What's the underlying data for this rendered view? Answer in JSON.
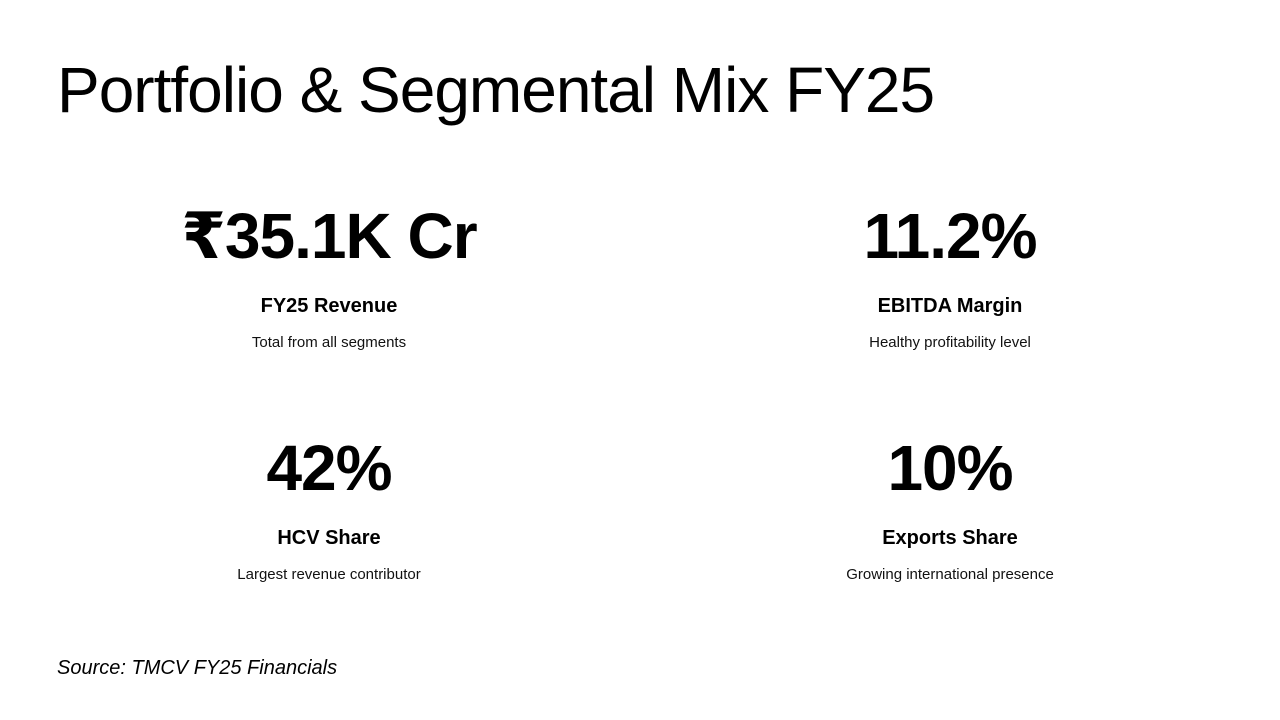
{
  "slide": {
    "title": "Portfolio & Segmental Mix FY25",
    "stats": [
      {
        "value": "₹35.1K Cr",
        "label": "FY25 Revenue",
        "description": "Total from all segments"
      },
      {
        "value": "11.2%",
        "label": "EBITDA Margin",
        "description": "Healthy profitability level"
      },
      {
        "value": "42%",
        "label": "HCV Share",
        "description": "Largest revenue contributor"
      },
      {
        "value": "10%",
        "label": "Exports Share",
        "description": "Growing international presence"
      }
    ],
    "source": "Source: TMCV FY25 Financials"
  },
  "colors": {
    "background": "#ffffff",
    "text": "#000000"
  }
}
